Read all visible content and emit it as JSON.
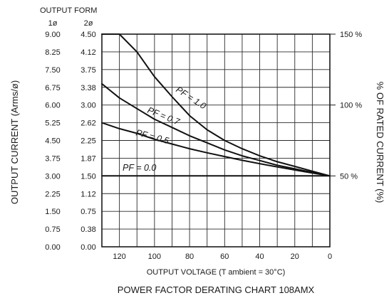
{
  "chart_data": {
    "type": "line",
    "title": "POWER FACTOR DERATING CHART 108AMX",
    "xlabel": "OUTPUT VOLTAGE (T ambient = 30°C)",
    "ylabel_left": "OUTPUT CURRENT (Arms/ø)",
    "ylabel_right": "% OF RATED CURRENT (%)",
    "output_form_label": "OUTPUT FORM",
    "column_1phase_label": "1ø",
    "column_2phase_label": "2ø",
    "xlim": [
      130,
      0
    ],
    "ylim": [
      0,
      9
    ],
    "grid": true,
    "x_ticks": [
      "120",
      "100",
      "80",
      "60",
      "40",
      "20",
      "0"
    ],
    "x_tick_values": [
      120,
      100,
      80,
      60,
      40,
      20,
      0
    ],
    "y_tick_values": [
      0,
      0.75,
      1.5,
      2.25,
      3,
      3.75,
      4.5,
      5.25,
      6,
      6.75,
      7.5,
      8.25,
      9
    ],
    "y_ticks_1phase": [
      "0.00",
      "0.75",
      "1.50",
      "2.25",
      "3.00",
      "3.75",
      "4.50",
      "5.25",
      "6.00",
      "6.75",
      "7.50",
      "8.25",
      "9.00"
    ],
    "y_ticks_2phase": [
      "0.00",
      "0.38",
      "0.75",
      "1.12",
      "1.50",
      "1.87",
      "2.25",
      "2.62",
      "3.00",
      "3.38",
      "3.75",
      "4.12",
      "4.50"
    ],
    "right_ticks": [
      {
        "label": "150 %",
        "y": 9
      },
      {
        "label": "100 %",
        "y": 6
      },
      {
        "label": "50 %",
        "y": 3
      }
    ],
    "series": [
      {
        "name": "PF = 1.0",
        "x": [
          130,
          120,
          110,
          100,
          90,
          80,
          70,
          60,
          50,
          40,
          30,
          20,
          10,
          0
        ],
        "y": [
          9.0,
          9.0,
          8.25,
          7.2,
          6.35,
          5.55,
          4.95,
          4.5,
          4.15,
          3.85,
          3.6,
          3.4,
          3.2,
          3.0
        ]
      },
      {
        "name": "PF = 0.7",
        "x": [
          130,
          120,
          110,
          100,
          90,
          80,
          70,
          60,
          50,
          40,
          30,
          20,
          10,
          0
        ],
        "y": [
          6.9,
          6.3,
          5.85,
          5.4,
          5.05,
          4.7,
          4.4,
          4.1,
          3.85,
          3.65,
          3.45,
          3.3,
          3.15,
          3.0
        ]
      },
      {
        "name": "PF = 0.5",
        "x": [
          130,
          120,
          110,
          100,
          90,
          80,
          70,
          60,
          50,
          40,
          30,
          20,
          10,
          0
        ],
        "y": [
          5.25,
          5.0,
          4.8,
          4.55,
          4.35,
          4.15,
          3.98,
          3.82,
          3.66,
          3.52,
          3.38,
          3.25,
          3.12,
          3.0
        ]
      },
      {
        "name": "PF = 0.0",
        "x": [
          130,
          0
        ],
        "y": [
          3.0,
          3.0
        ]
      }
    ]
  }
}
